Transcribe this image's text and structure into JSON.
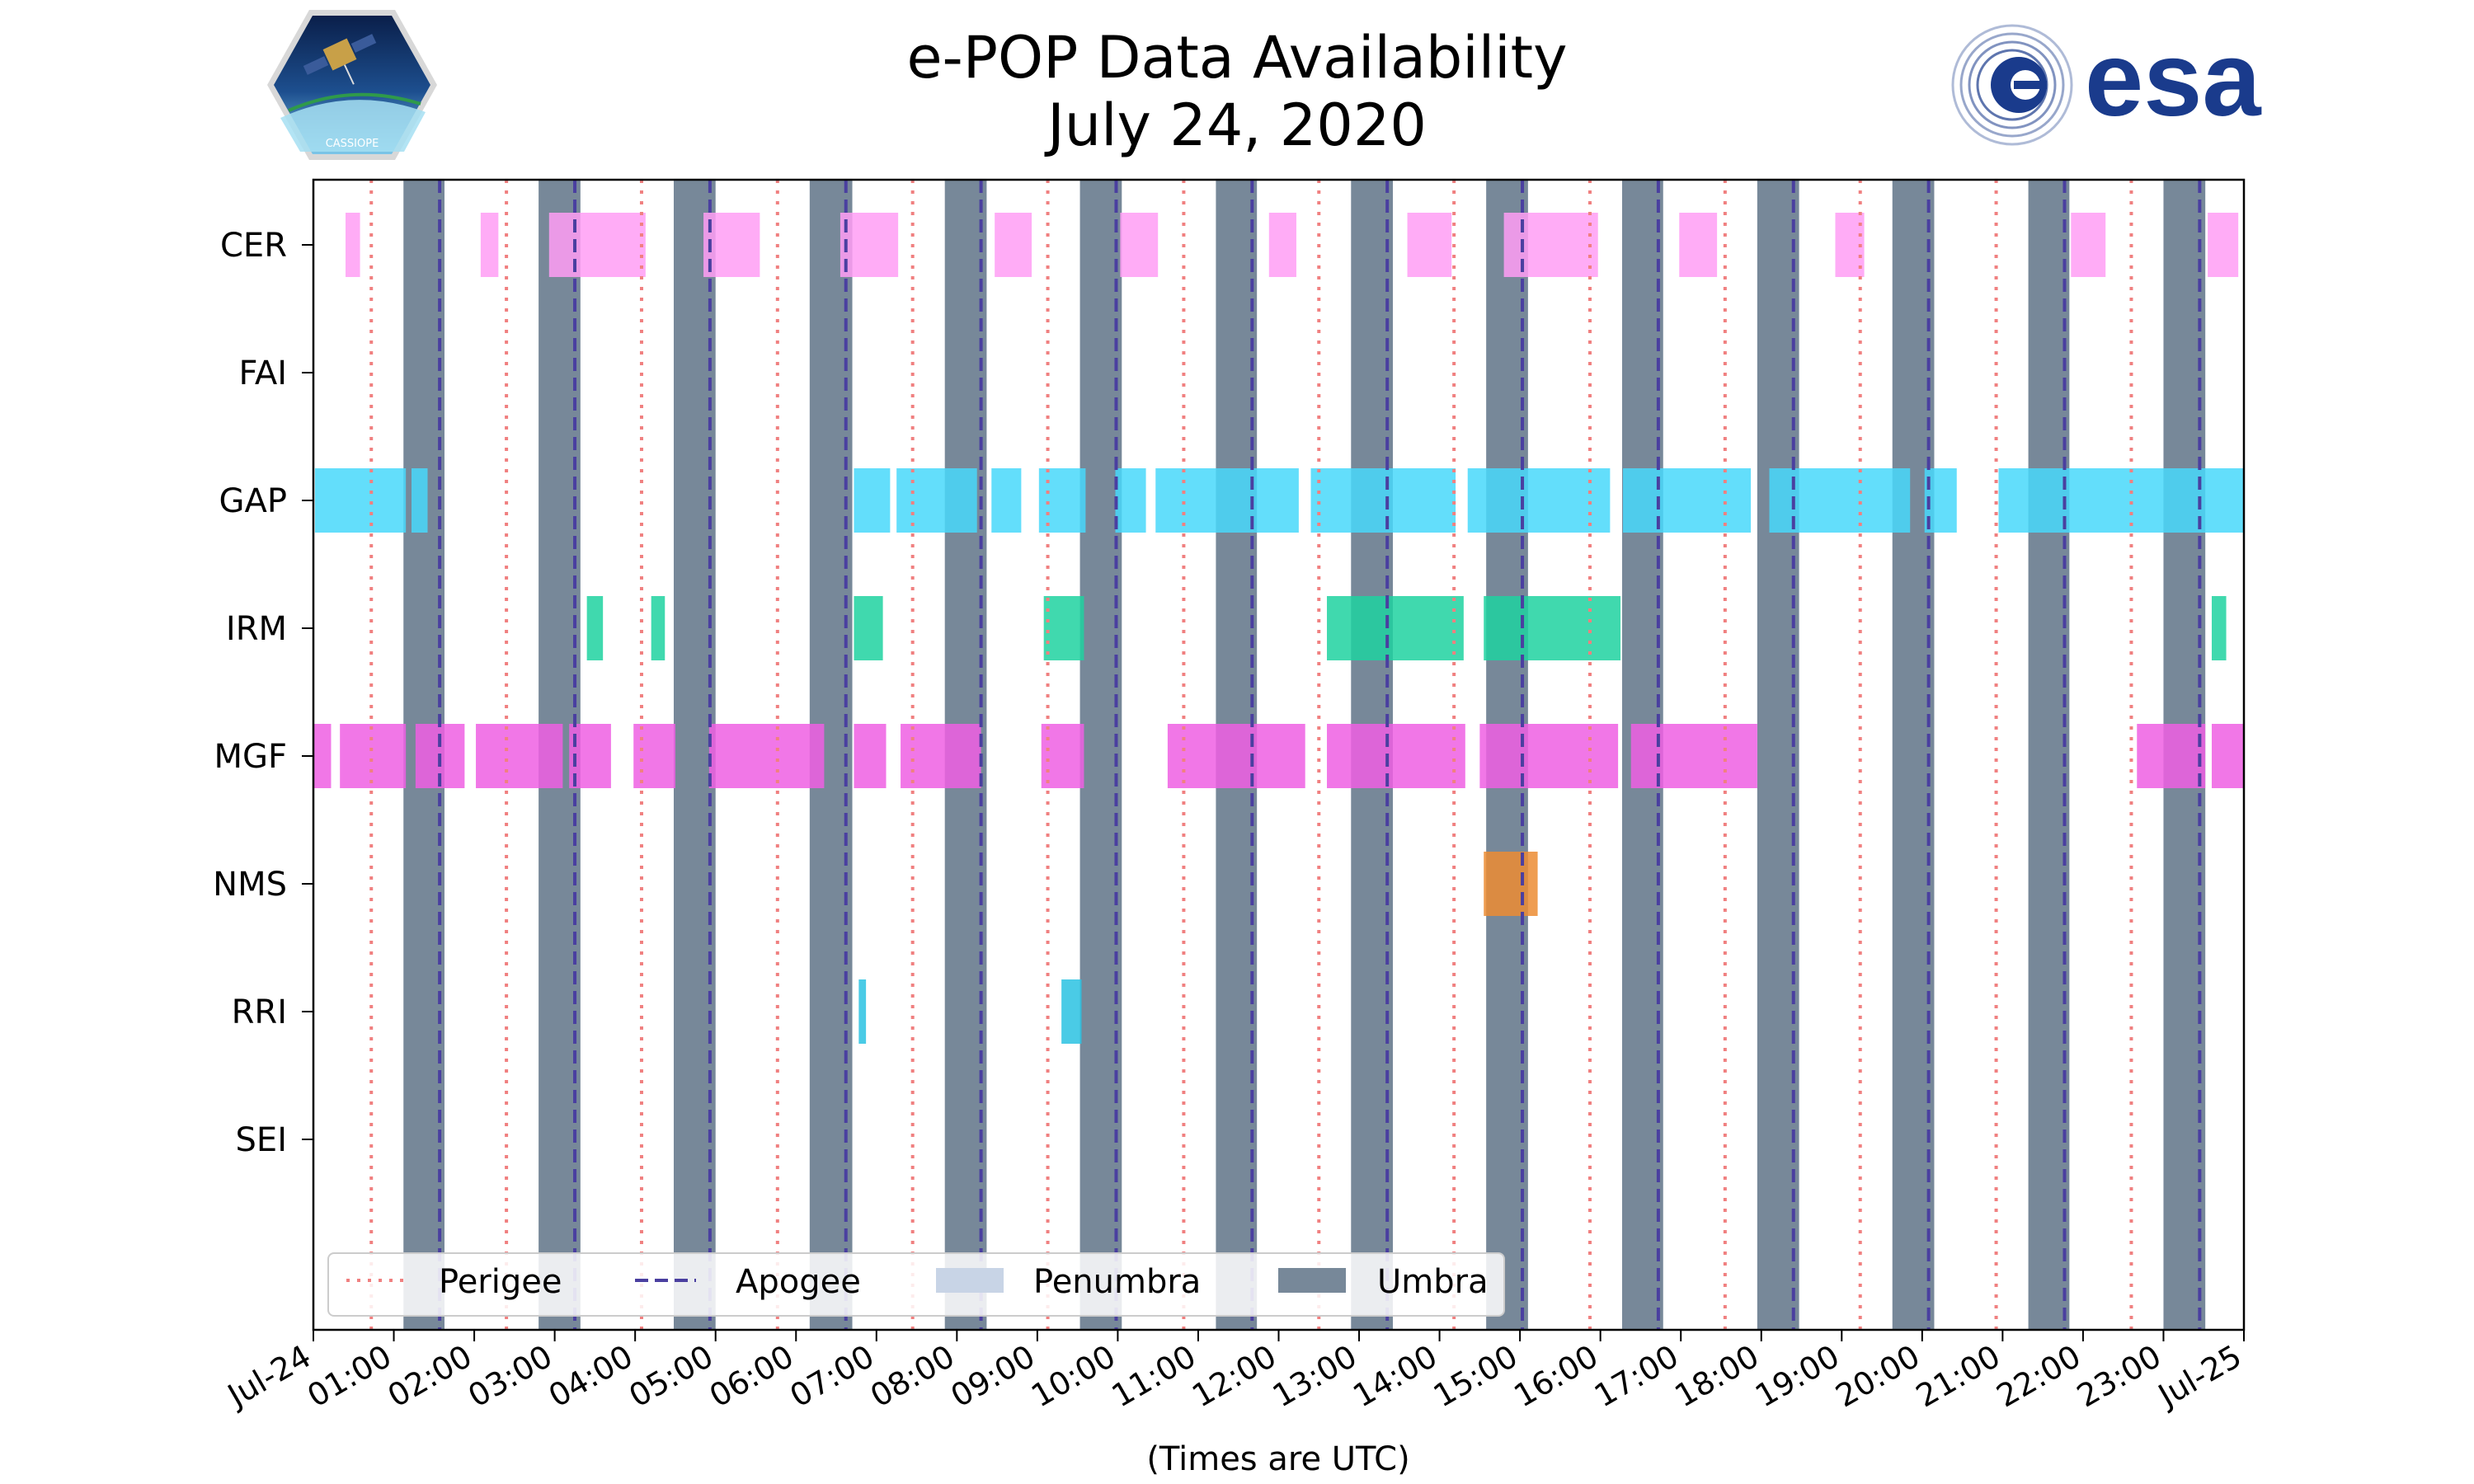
{
  "colors": {
    "CER": "#ff9ef5",
    "FAI": "#8888ff",
    "GAP": "#48d8fa",
    "IRM": "#1ed2a0",
    "MGF": "#ef5fe3",
    "NMS": "#ec8c32",
    "RRI": "#2ac2e2",
    "SEI": "#aaaaaa",
    "umbra": "#778899",
    "penumbra": "#c8d4e6",
    "perigee": "#f08080",
    "apogee": "#4a3fa0"
  },
  "chart_data": {
    "type": "gantt",
    "title": "e-POP Data Availability",
    "subtitle": "July 24, 2020",
    "xlabel": "(Times are UTC)",
    "xlim": [
      0,
      24
    ],
    "x_tick_labels": [
      "Jul-24",
      "01:00",
      "02:00",
      "03:00",
      "04:00",
      "05:00",
      "06:00",
      "07:00",
      "08:00",
      "09:00",
      "10:00",
      "11:00",
      "12:00",
      "13:00",
      "14:00",
      "15:00",
      "16:00",
      "17:00",
      "18:00",
      "19:00",
      "20:00",
      "21:00",
      "22:00",
      "23:00",
      "Jul-25"
    ],
    "instruments": [
      "CER",
      "FAI",
      "GAP",
      "IRM",
      "MGF",
      "NMS",
      "RRI",
      "SEI"
    ],
    "intervals_hours": {
      "CER": [
        [
          0.4,
          0.58
        ],
        [
          2.08,
          2.3
        ],
        [
          2.93,
          4.13
        ],
        [
          4.85,
          5.55
        ],
        [
          6.55,
          7.27
        ],
        [
          8.47,
          8.93
        ],
        [
          10.03,
          10.5
        ],
        [
          11.88,
          12.22
        ],
        [
          13.6,
          14.15
        ],
        [
          14.8,
          15.97
        ],
        [
          16.98,
          17.45
        ],
        [
          18.92,
          19.28
        ],
        [
          21.85,
          22.28
        ],
        [
          23.55,
          23.93
        ]
      ],
      "FAI": [],
      "GAP": [
        [
          0.02,
          1.15
        ],
        [
          1.22,
          1.42
        ],
        [
          6.72,
          7.17
        ],
        [
          7.25,
          8.25
        ],
        [
          8.43,
          8.8
        ],
        [
          9.02,
          9.6
        ],
        [
          9.97,
          10.35
        ],
        [
          10.47,
          12.25
        ],
        [
          12.4,
          14.2
        ],
        [
          14.35,
          16.12
        ],
        [
          16.28,
          17.87
        ],
        [
          18.1,
          19.85
        ],
        [
          20.03,
          20.43
        ],
        [
          20.95,
          24.0
        ]
      ],
      "IRM": [
        [
          3.4,
          3.6
        ],
        [
          4.2,
          4.37
        ],
        [
          6.72,
          7.08
        ],
        [
          9.08,
          9.58
        ],
        [
          12.6,
          14.3
        ],
        [
          14.55,
          16.25
        ],
        [
          23.6,
          23.78
        ]
      ],
      "MGF": [
        [
          0.0,
          0.22
        ],
        [
          0.33,
          1.15
        ],
        [
          1.27,
          1.88
        ],
        [
          2.02,
          3.1
        ],
        [
          3.18,
          3.7
        ],
        [
          3.98,
          4.5
        ],
        [
          4.92,
          6.35
        ],
        [
          6.72,
          7.12
        ],
        [
          7.3,
          8.3
        ],
        [
          9.05,
          9.58
        ],
        [
          10.62,
          12.33
        ],
        [
          12.6,
          14.32
        ],
        [
          14.5,
          16.22
        ],
        [
          16.38,
          17.95
        ],
        [
          22.67,
          23.52
        ],
        [
          23.6,
          24.0
        ]
      ],
      "NMS": [
        [
          14.55,
          15.22
        ]
      ],
      "RRI": [
        [
          6.78,
          6.87
        ],
        [
          9.3,
          9.55
        ]
      ],
      "SEI": []
    },
    "umbra_hours": [
      [
        1.12,
        1.63
      ],
      [
        2.8,
        3.32
      ],
      [
        4.48,
        5.0
      ],
      [
        6.17,
        6.7
      ],
      [
        7.85,
        8.37
      ],
      [
        9.53,
        10.05
      ],
      [
        11.22,
        11.73
      ],
      [
        12.9,
        13.42
      ],
      [
        14.58,
        15.1
      ],
      [
        16.27,
        16.78
      ],
      [
        17.95,
        18.47
      ],
      [
        19.63,
        20.15
      ],
      [
        21.32,
        21.83
      ],
      [
        23.0,
        23.52
      ]
    ],
    "perigee_hours": [
      0.72,
      2.4,
      4.08,
      5.77,
      7.45,
      9.13,
      10.82,
      12.5,
      14.18,
      15.87,
      17.55,
      19.23,
      20.92,
      22.6
    ],
    "apogee_hours": [
      1.57,
      3.25,
      4.93,
      6.62,
      8.3,
      9.98,
      11.67,
      13.35,
      15.03,
      16.72,
      18.4,
      20.08,
      21.77,
      23.45
    ],
    "legend": [
      "Perigee",
      "Apogee",
      "Penumbra",
      "Umbra"
    ],
    "legend_position": "lower-left"
  },
  "logos": {
    "cassiope_text": "CASSIOPE",
    "esa_text": "esa"
  }
}
